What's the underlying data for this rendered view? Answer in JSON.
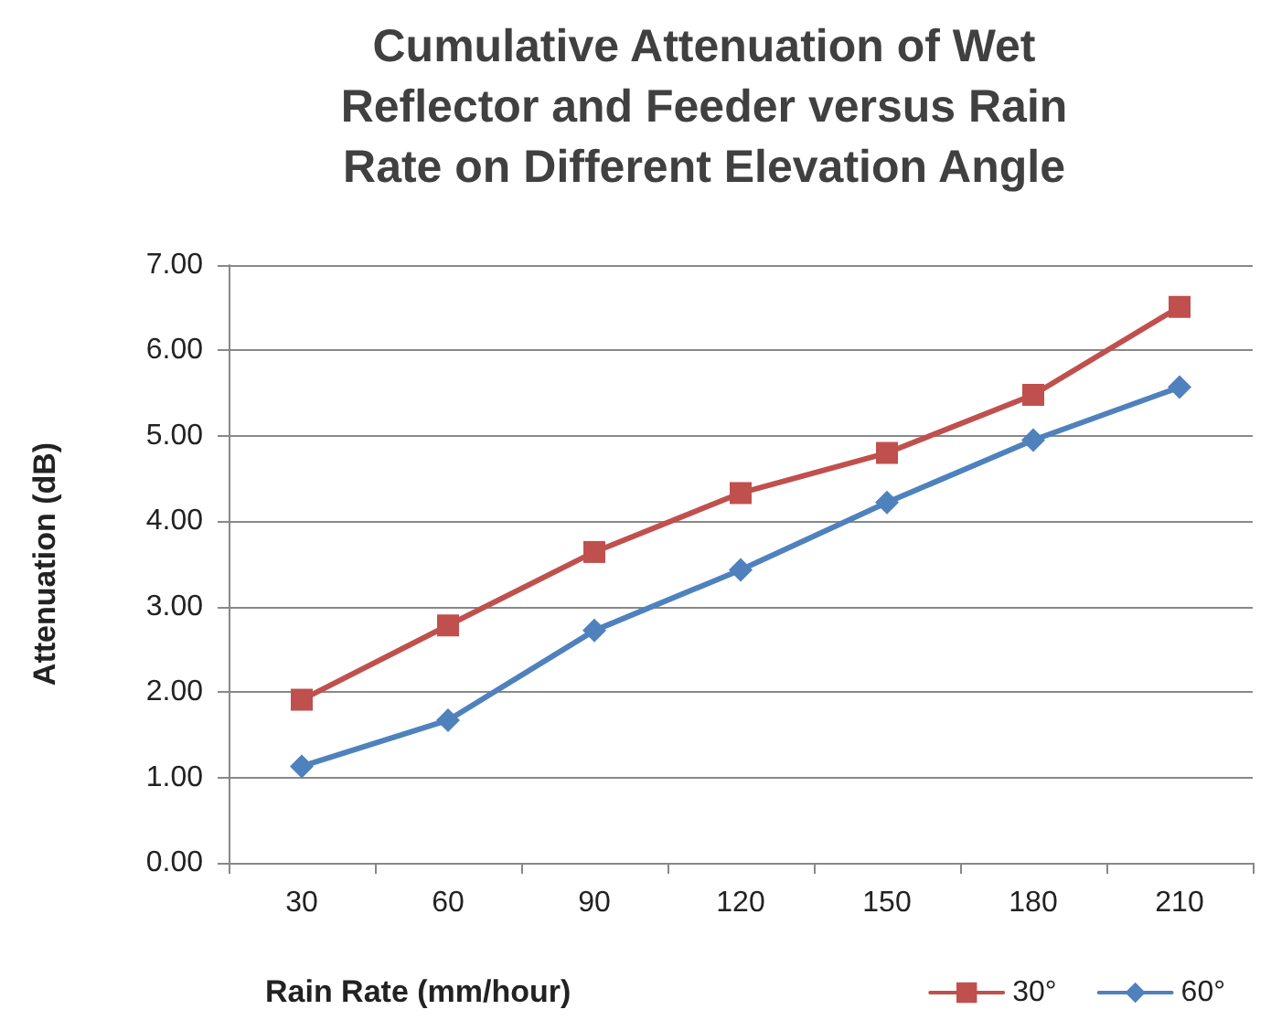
{
  "chart_data": {
    "type": "line",
    "title": "Cumulative Attenuation of Wet\nReflector and Feeder versus Rain\nRate on Different Elevation Angle",
    "xlabel": "Rain Rate (mm/hour)",
    "ylabel": "Attenuation (dB)",
    "categories": [
      "30",
      "60",
      "90",
      "120",
      "150",
      "180",
      "210"
    ],
    "series": [
      {
        "name": "30°",
        "color": "#c0504d",
        "marker": "square",
        "values": [
          1.91,
          2.78,
          3.64,
          4.33,
          4.8,
          5.48,
          6.51
        ]
      },
      {
        "name": "60°",
        "color": "#4f81bd",
        "marker": "diamond",
        "values": [
          1.13,
          1.67,
          2.72,
          3.43,
          4.22,
          4.95,
          5.57
        ]
      }
    ],
    "ylim": [
      0,
      7
    ],
    "yticks": [
      {
        "value": 0,
        "label": "0.00"
      },
      {
        "value": 1,
        "label": "1.00"
      },
      {
        "value": 2,
        "label": "2.00"
      },
      {
        "value": 3,
        "label": "3.00"
      },
      {
        "value": 4,
        "label": "4.00"
      },
      {
        "value": 5,
        "label": "5.00"
      },
      {
        "value": 6,
        "label": "6.00"
      },
      {
        "value": 7,
        "label": "7.00"
      }
    ],
    "grid": "y",
    "legend": "bottom right",
    "line_style": "solid"
  }
}
